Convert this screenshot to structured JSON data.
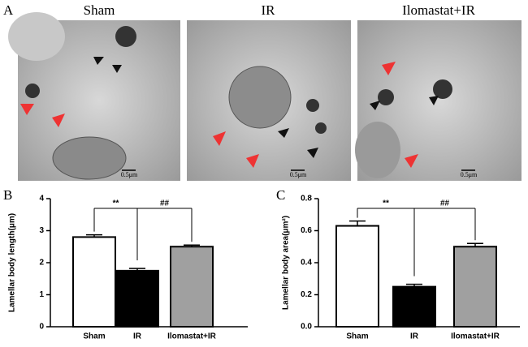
{
  "panels": {
    "a": "A",
    "b": "B",
    "c": "C"
  },
  "images": [
    {
      "label": "Sham",
      "scale": "0.5μm"
    },
    {
      "label": "IR",
      "scale": "0.5μm"
    },
    {
      "label": "Ilomastat+IR",
      "scale": "0.5μm"
    }
  ],
  "chart_data": [
    {
      "type": "bar",
      "y_label": "Lamellar body length(μm)",
      "categories": [
        "Sham",
        "IR",
        "Ilomastat+IR"
      ],
      "values": [
        2.8,
        1.75,
        2.5
      ],
      "errors": [
        0.07,
        0.07,
        0.05
      ],
      "colors": [
        "#ffffff",
        "#000000",
        "#a0a0a0"
      ],
      "ylim": [
        0,
        4
      ],
      "yticks": [
        0,
        1,
        2,
        3,
        4
      ],
      "annotations": [
        "**",
        "##"
      ]
    },
    {
      "type": "bar",
      "y_label": "Lamellar body area(μm²)",
      "categories": [
        "Sham",
        "IR",
        "Ilomastat+IR"
      ],
      "values": [
        0.63,
        0.25,
        0.5
      ],
      "errors": [
        0.03,
        0.015,
        0.02
      ],
      "colors": [
        "#ffffff",
        "#000000",
        "#a0a0a0"
      ],
      "ylim": [
        0,
        0.8
      ],
      "yticks": [
        {
          "value": 0,
          "label": "0.0"
        },
        0.2,
        0.4,
        0.6,
        0.8
      ],
      "annotations": [
        "**",
        "##"
      ]
    }
  ]
}
